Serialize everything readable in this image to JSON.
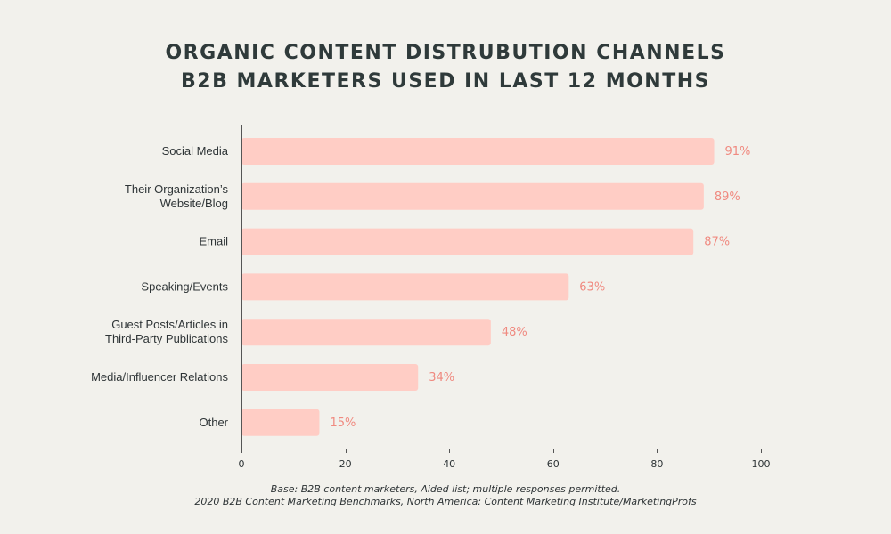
{
  "chart_data": {
    "type": "bar",
    "orientation": "horizontal",
    "title_lines": [
      "ORGANIC CONTENT DISTRUBUTION CHANNELS",
      "B2B MARKETERS USED IN LAST 12 MONTHS"
    ],
    "categories": [
      [
        "Social Media"
      ],
      [
        "Their Organization’s",
        "Website/Blog"
      ],
      [
        "Email"
      ],
      [
        "Speaking/Events"
      ],
      [
        "Guest Posts/Articles in",
        "Third-Party Publications"
      ],
      [
        "Media/Influencer Relations"
      ],
      [
        "Other"
      ]
    ],
    "values": [
      91,
      89,
      87,
      63,
      48,
      34,
      15
    ],
    "value_labels": [
      "91%",
      "89%",
      "87%",
      "63%",
      "48%",
      "34%",
      "15%"
    ],
    "xlim": [
      0,
      100
    ],
    "xticks": [
      0,
      20,
      40,
      60,
      80,
      100
    ],
    "xtick_labels": [
      "0",
      "20",
      "40",
      "60",
      "80",
      "100"
    ],
    "grid": false,
    "bar_color": "#ffcdc5",
    "value_label_color": "#f08a80"
  },
  "footnotes": [
    "Base: B2B content marketers, Aided list; multiple responses permitted.",
    "2020 B2B Content Marketing Benchmarks, North America: Content Marketing Institute/MarketingProfs"
  ]
}
